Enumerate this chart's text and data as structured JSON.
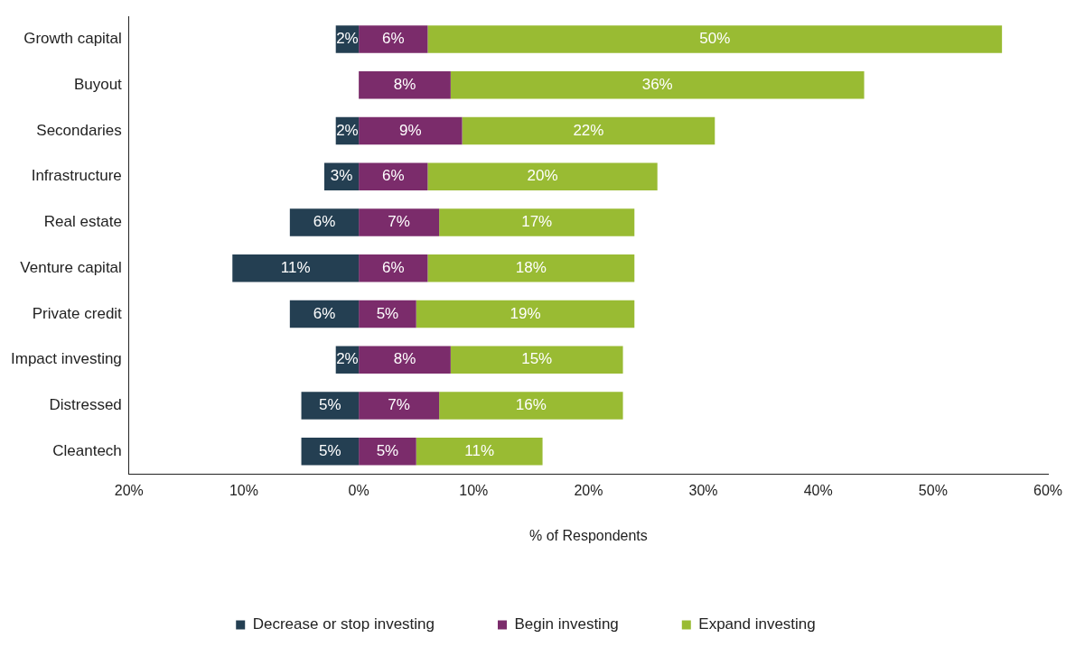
{
  "chart_data": {
    "type": "bar",
    "orientation": "horizontal",
    "xlabel": "% of Respondents",
    "categories": [
      "Growth capital",
      "Buyout",
      "Secondaries",
      "Infrastructure",
      "Real estate",
      "Venture capital",
      "Private credit",
      "Impact investing",
      "Distressed",
      "Cleantech"
    ],
    "series": [
      {
        "name": "Decrease or stop investing",
        "color": "#243f52",
        "base": [
          -2,
          null,
          -2,
          -3,
          -6,
          -11,
          -6,
          -2,
          -5,
          -5
        ],
        "values": [
          2,
          null,
          2,
          3,
          6,
          11,
          6,
          2,
          5,
          5
        ],
        "value_labels": [
          "2%",
          null,
          "2%",
          "3%",
          "6%",
          "11%",
          "6%",
          "2%",
          "5%",
          "5%"
        ]
      },
      {
        "name": "Begin investing",
        "color": "#7b2c6b",
        "base": [
          0,
          0,
          0,
          0,
          0,
          0,
          0,
          0,
          0,
          0
        ],
        "values": [
          6,
          8,
          9,
          6,
          7,
          6,
          5,
          8,
          7,
          5
        ],
        "value_labels": [
          "6%",
          "8%",
          "9%",
          "6%",
          "7%",
          "6%",
          "5%",
          "8%",
          "7%",
          "5%"
        ]
      },
      {
        "name": "Expand investing",
        "color": "#99bb33",
        "base": [
          6,
          8,
          9,
          6,
          7,
          6,
          5,
          8,
          7,
          5
        ],
        "values": [
          50,
          36,
          22,
          20,
          17,
          18,
          19,
          15,
          16,
          11
        ],
        "value_labels": [
          "50%",
          "36%",
          "22%",
          "20%",
          "17%",
          "18%",
          "19%",
          "15%",
          "16%",
          "11%"
        ]
      }
    ],
    "xlim": [
      -20,
      60
    ],
    "xticks": [
      {
        "value": -20,
        "label": "20%"
      },
      {
        "value": -10,
        "label": "10%"
      },
      {
        "value": 0,
        "label": "0%"
      },
      {
        "value": 10,
        "label": "10%"
      },
      {
        "value": 20,
        "label": "20%"
      },
      {
        "value": 30,
        "label": "30%"
      },
      {
        "value": 40,
        "label": "40%"
      },
      {
        "value": 50,
        "label": "50%"
      },
      {
        "value": 60,
        "label": "60%"
      }
    ],
    "grid": false,
    "legend": "bottom"
  }
}
